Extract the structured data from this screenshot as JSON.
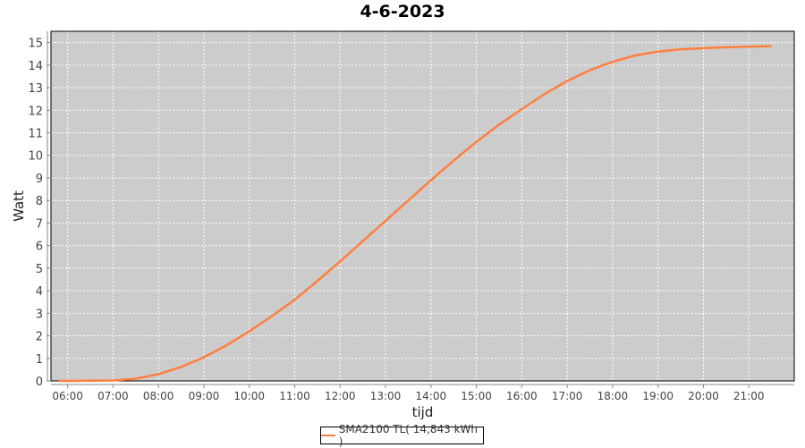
{
  "chart_data": {
    "type": "line",
    "title": "4-6-2023",
    "xlabel": "tijd",
    "ylabel": "Watt",
    "ylim": [
      0,
      15.5
    ],
    "xlim": [
      "05:38",
      "22:00"
    ],
    "xticks": [
      "06:00",
      "07:00",
      "08:00",
      "09:00",
      "10:00",
      "11:00",
      "12:00",
      "13:00",
      "14:00",
      "15:00",
      "16:00",
      "17:00",
      "18:00",
      "19:00",
      "20:00",
      "21:00"
    ],
    "yticks": [
      0,
      1,
      2,
      3,
      4,
      5,
      6,
      7,
      8,
      9,
      10,
      11,
      12,
      13,
      14,
      15
    ],
    "grid": true,
    "legend_position": "bottom",
    "background": "#cccccc",
    "series": [
      {
        "name": "SMA2100 TL( 14,843 kWh )",
        "color": "#ff7f3f",
        "x": [
          "05:48",
          "06:00",
          "06:30",
          "07:00",
          "07:30",
          "08:00",
          "08:30",
          "09:00",
          "09:30",
          "10:00",
          "10:30",
          "11:00",
          "11:30",
          "12:00",
          "12:30",
          "13:00",
          "13:30",
          "14:00",
          "14:30",
          "15:00",
          "15:30",
          "16:00",
          "16:30",
          "17:00",
          "17:30",
          "18:00",
          "18:30",
          "19:00",
          "19:30",
          "20:00",
          "20:30",
          "21:00",
          "21:30"
        ],
        "y": [
          0,
          0,
          0.01,
          0.02,
          0.1,
          0.3,
          0.62,
          1.05,
          1.58,
          2.2,
          2.88,
          3.6,
          4.43,
          5.3,
          6.2,
          7.1,
          8.0,
          8.9,
          9.77,
          10.6,
          11.36,
          12.05,
          12.72,
          13.3,
          13.78,
          14.15,
          14.43,
          14.6,
          14.7,
          14.75,
          14.79,
          14.82,
          14.843
        ]
      }
    ]
  }
}
